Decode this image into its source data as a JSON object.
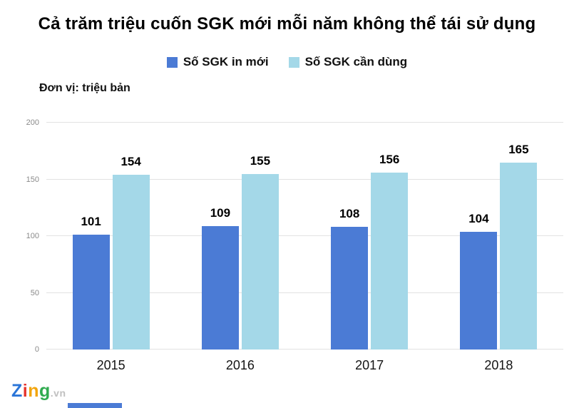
{
  "title": "Cả trăm triệu cuốn SGK mới mỗi năm không thể tái sử dụng",
  "unit_label": "Đơn vị: triệu bản",
  "chart_data": {
    "type": "bar",
    "title": "Cả trăm triệu cuốn SGK mới mỗi năm không thể tái sử dụng",
    "unit": "triệu bản",
    "categories": [
      "2015",
      "2016",
      "2017",
      "2018"
    ],
    "series": [
      {
        "name": "Số SGK in mới",
        "color": "#4b7bd5",
        "values": [
          101,
          109,
          108,
          104
        ]
      },
      {
        "name": "Số SGK cần dùng",
        "color": "#a4d8e8",
        "values": [
          154,
          155,
          156,
          165
        ]
      }
    ],
    "xlabel": "",
    "ylabel": "triệu bản",
    "ylim": [
      0,
      200
    ],
    "yticks": [
      0,
      50,
      100,
      150,
      200
    ],
    "grid": true,
    "legend_position": "top"
  },
  "watermark": {
    "letters": [
      {
        "char": "Z",
        "color": "#2a75d8"
      },
      {
        "char": "i",
        "color": "#e5342e"
      },
      {
        "char": "n",
        "color": "#f2a50e"
      },
      {
        "char": "g",
        "color": "#2fab4f"
      }
    ],
    "suffix": ".vn"
  },
  "decor": {
    "bottom_strip_color": "#4b7bd5",
    "gridline_color": "#e2e2e2"
  }
}
